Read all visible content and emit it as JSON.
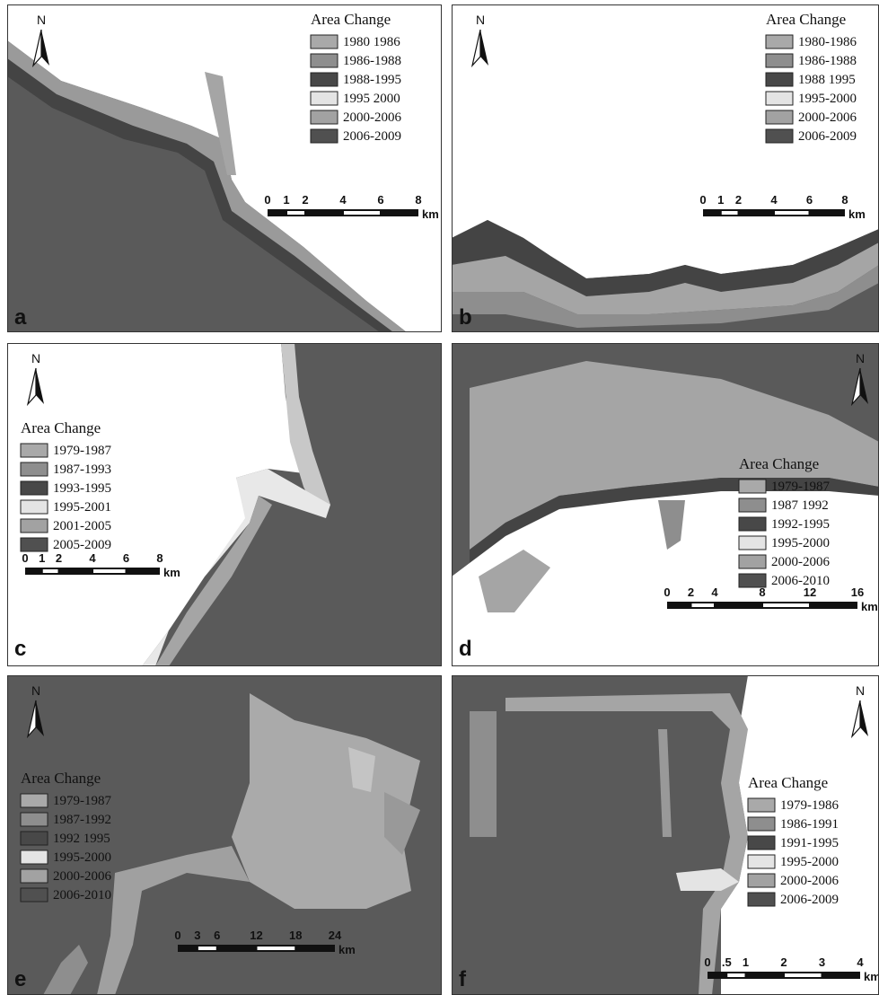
{
  "panels": [
    {
      "label": "a",
      "north": "N",
      "legend_title": "Area Change",
      "legend": [
        "1980 1986",
        "1986-1988",
        "1988-1995",
        "1995 2000",
        "2000-2006",
        "2006-2009"
      ],
      "scale": [
        "0",
        "1",
        "2",
        "4",
        "6",
        "8"
      ],
      "scale_unit": "km"
    },
    {
      "label": "b",
      "north": "N",
      "legend_title": "Area Change",
      "legend": [
        "1980-1986",
        "1986-1988",
        "1988 1995",
        "1995-2000",
        "2000-2006",
        "2006-2009"
      ],
      "scale": [
        "0",
        "1",
        "2",
        "4",
        "6",
        "8"
      ],
      "scale_unit": "km"
    },
    {
      "label": "c",
      "north": "N",
      "legend_title": "Area Change",
      "legend": [
        "1979-1987",
        "1987-1993",
        "1993-1995",
        "1995-2001",
        "2001-2005",
        "2005-2009"
      ],
      "scale": [
        "0",
        "1",
        "2",
        "4",
        "6",
        "8"
      ],
      "scale_unit": "km"
    },
    {
      "label": "d",
      "north": "N",
      "legend_title": "Area Change",
      "legend": [
        "1979-1987",
        "1987 1992",
        "1992-1995",
        "1995-2000",
        "2000-2006",
        "2006-2010"
      ],
      "scale": [
        "0",
        "2",
        "4",
        "8",
        "12",
        "16"
      ],
      "scale_unit": "km"
    },
    {
      "label": "e",
      "north": "N",
      "legend_title": "Area Change",
      "legend": [
        "1979-1987",
        "1987-1992",
        "1992 1995",
        "1995-2000",
        "2000-2006",
        "2006-2010"
      ],
      "scale": [
        "0",
        "3",
        "6",
        "12",
        "18",
        "24"
      ],
      "scale_unit": "km"
    },
    {
      "label": "f",
      "north": "N",
      "legend_title": "Area Change",
      "legend": [
        "1979-1986",
        "1986-1991",
        "1991-1995",
        "1995-2000",
        "2000-2006",
        "2006-2009"
      ],
      "scale": [
        "0",
        ".5",
        "1",
        "2",
        "3",
        "4"
      ],
      "scale_unit": "km"
    }
  ]
}
